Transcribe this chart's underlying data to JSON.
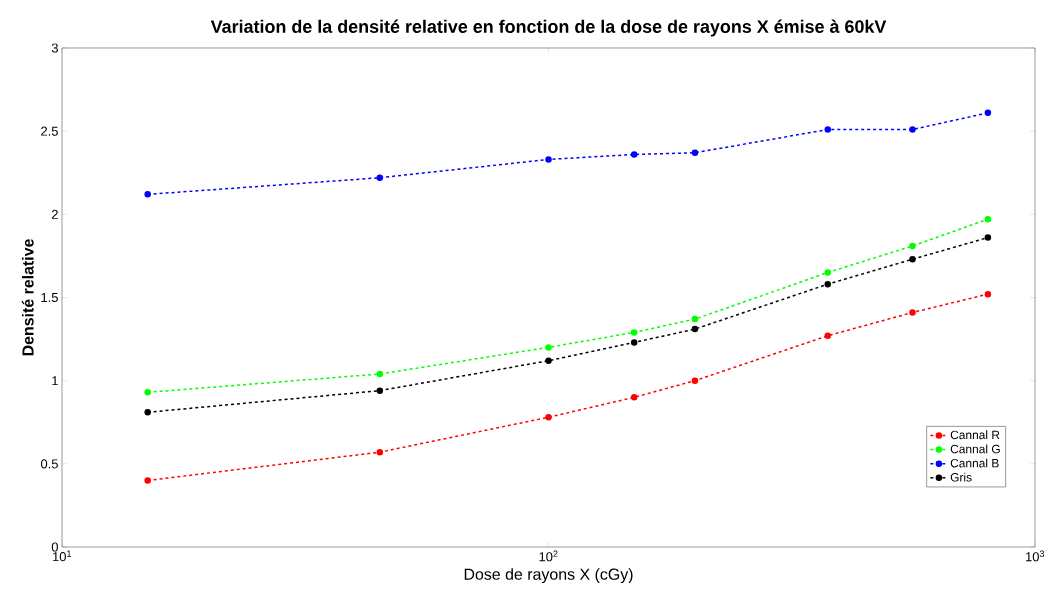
{
  "chart_data": {
    "type": "line",
    "title": "Variation de la densité relative en fonction de la dose de rayons X émise à 60kV",
    "xlabel": "Dose de rayons X (cGy)",
    "ylabel": "Densité relative",
    "x": [
      15,
      45,
      100,
      150,
      200,
      375,
      560,
      800
    ],
    "series": [
      {
        "name": "Cannal R",
        "color": "#ff0000",
        "values": [
          0.4,
          0.57,
          0.78,
          0.9,
          1.0,
          1.27,
          1.41,
          1.52
        ]
      },
      {
        "name": "Cannal G",
        "color": "#00ff00",
        "values": [
          0.93,
          1.04,
          1.2,
          1.29,
          1.37,
          1.65,
          1.81,
          1.97
        ]
      },
      {
        "name": "Cannal B",
        "color": "#0000ff",
        "values": [
          2.12,
          2.22,
          2.33,
          2.36,
          2.37,
          2.51,
          2.51,
          2.61
        ]
      },
      {
        "name": "Gris",
        "color": "#000000",
        "values": [
          0.81,
          0.94,
          1.12,
          1.23,
          1.31,
          1.58,
          1.73,
          1.86
        ]
      }
    ],
    "log": "x",
    "xlim": [
      10,
      1000
    ],
    "xticks": [
      {
        "value": 10,
        "label": "10$^{1}$"
      },
      {
        "value": 100,
        "label": "10$^{2}$"
      },
      {
        "value": 1000,
        "label": "10$^{3}$"
      }
    ],
    "ylim": [
      0,
      3
    ],
    "yticks": [
      0,
      0.5,
      1,
      1.5,
      2,
      2.5,
      3
    ],
    "grid": false,
    "legend": "bottom right",
    "marker": "circle",
    "line_style": "dashed"
  }
}
